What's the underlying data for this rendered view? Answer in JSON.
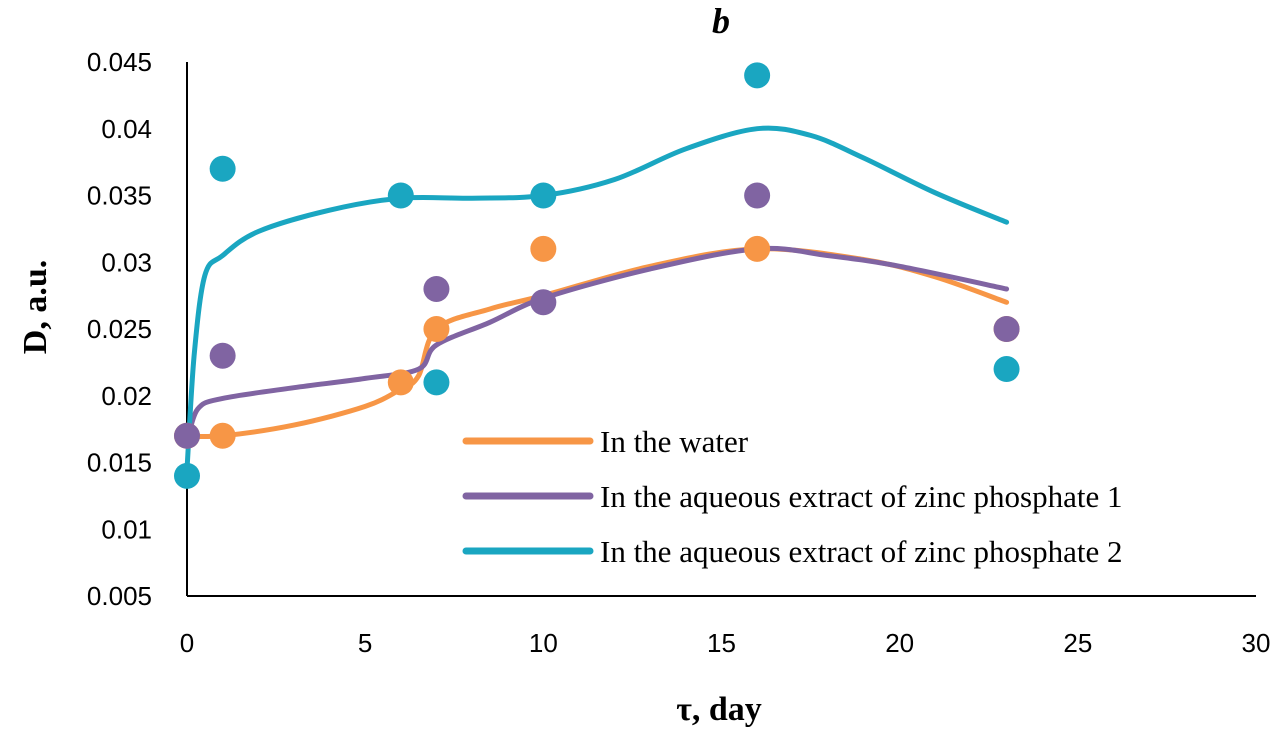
{
  "chart_data": {
    "type": "scatter",
    "title": "b",
    "xlabel": "τ, day",
    "ylabel": "D, a.u.",
    "xlim": [
      0,
      30
    ],
    "ylim": [
      0.005,
      0.045
    ],
    "x_ticks": [
      0,
      5,
      10,
      15,
      20,
      25,
      30
    ],
    "x_tick_labels": [
      "0",
      "5",
      "10",
      "15",
      "20",
      "25",
      "30"
    ],
    "y_ticks": [
      0.005,
      0.01,
      0.015,
      0.02,
      0.025,
      0.03,
      0.035,
      0.04,
      0.045
    ],
    "y_tick_labels": [
      "0.005",
      "0.01",
      "0.015",
      "0.02",
      "0.025",
      "0.03",
      "0.035",
      "0.04",
      "0.045"
    ],
    "grid": false,
    "legend_position": "bottom-right",
    "series": [
      {
        "name": "In the water",
        "color": "#F79646",
        "points": [
          [
            0,
            0.017
          ],
          [
            1,
            0.017
          ],
          [
            6,
            0.021
          ],
          [
            7,
            0.025
          ],
          [
            10,
            0.031
          ],
          [
            16,
            0.031
          ],
          [
            23,
            0.025
          ]
        ],
        "trend": [
          [
            0,
            0.017
          ],
          [
            1,
            0.017
          ],
          [
            3,
            0.0178
          ],
          [
            5,
            0.0192
          ],
          [
            6,
            0.0205
          ],
          [
            6.5,
            0.0215
          ],
          [
            7,
            0.025
          ],
          [
            8.5,
            0.0265
          ],
          [
            10,
            0.0275
          ],
          [
            13,
            0.0297
          ],
          [
            16,
            0.031
          ],
          [
            19,
            0.0302
          ],
          [
            21,
            0.0289
          ],
          [
            23,
            0.027
          ]
        ]
      },
      {
        "name": "In the aqueous extract of zinc phosphate 1",
        "color": "#8064A2",
        "points": [
          [
            0,
            0.017
          ],
          [
            1,
            0.023
          ],
          [
            7,
            0.028
          ],
          [
            10,
            0.027
          ],
          [
            16,
            0.035
          ],
          [
            23,
            0.025
          ]
        ],
        "trend": [
          [
            0,
            0.0165
          ],
          [
            0.3,
            0.019
          ],
          [
            1,
            0.0198
          ],
          [
            3,
            0.0206
          ],
          [
            5,
            0.0213
          ],
          [
            6.5,
            0.022
          ],
          [
            7,
            0.0238
          ],
          [
            8.5,
            0.0255
          ],
          [
            10,
            0.0273
          ],
          [
            13,
            0.0295
          ],
          [
            16,
            0.031
          ],
          [
            18,
            0.0305
          ],
          [
            20,
            0.0297
          ],
          [
            23,
            0.028
          ]
        ]
      },
      {
        "name": "In the aqueous extract of zinc phosphate 2",
        "color": "#1AA6C1",
        "points": [
          [
            0,
            0.014
          ],
          [
            1,
            0.037
          ],
          [
            6,
            0.035
          ],
          [
            7,
            0.021
          ],
          [
            10,
            0.035
          ],
          [
            16,
            0.044
          ],
          [
            23,
            0.022
          ]
        ],
        "trend": [
          [
            0,
            0.0145
          ],
          [
            0.2,
            0.023
          ],
          [
            0.5,
            0.029
          ],
          [
            1,
            0.0305
          ],
          [
            2,
            0.0323
          ],
          [
            4,
            0.0339
          ],
          [
            6,
            0.0348
          ],
          [
            8,
            0.0348
          ],
          [
            10,
            0.035
          ],
          [
            12,
            0.0362
          ],
          [
            14,
            0.0385
          ],
          [
            16,
            0.04
          ],
          [
            17.5,
            0.0395
          ],
          [
            19,
            0.0378
          ],
          [
            21,
            0.0352
          ],
          [
            23,
            0.033
          ]
        ]
      }
    ]
  }
}
